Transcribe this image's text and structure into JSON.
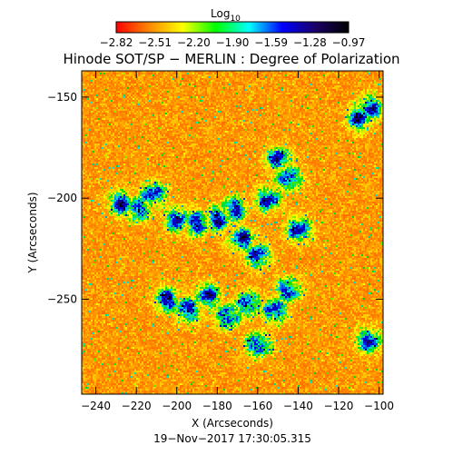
{
  "chart_data": {
    "type": "heatmap",
    "title": "Hinode SOT/SP − MERLIN : Degree of Polarization",
    "xlabel": "X (Arcseconds)",
    "ylabel": "Y (Arcseconds)",
    "timestamp": "19−Nov−2017 17:30:05.315",
    "xlim": [
      -247,
      -98
    ],
    "ylim": [
      -297,
      -137
    ],
    "x_ticks": [
      {
        "value": -240,
        "label": "−240"
      },
      {
        "value": -220,
        "label": "−220"
      },
      {
        "value": -200,
        "label": "−200"
      },
      {
        "value": -180,
        "label": "−180"
      },
      {
        "value": -160,
        "label": "−160"
      },
      {
        "value": -140,
        "label": "−140"
      },
      {
        "value": -120,
        "label": "−120"
      },
      {
        "value": -100,
        "label": "−100"
      }
    ],
    "y_ticks": [
      {
        "value": -150,
        "label": "−150"
      },
      {
        "value": -200,
        "label": "−200"
      },
      {
        "value": -250,
        "label": "−250"
      }
    ],
    "colorbar": {
      "label_base": "Log",
      "label_sub": "10",
      "range": [
        -2.82,
        -0.97
      ],
      "tick_labels": [
        "−2.82",
        "−2.51",
        "−2.20",
        "−1.90",
        "−1.59",
        "−1.28",
        "−0.97"
      ],
      "colors": [
        "#ff0000",
        "#ff8800",
        "#ffff00",
        "#00ff00",
        "#00ffff",
        "#0000ff",
        "#1a0066",
        "#000000"
      ]
    },
    "regions": {
      "high_polarization_network": [
        {
          "x": -228,
          "y": -202
        },
        {
          "x": -220,
          "y": -205
        },
        {
          "x": -212,
          "y": -198
        },
        {
          "x": -200,
          "y": -210
        },
        {
          "x": -190,
          "y": -212
        },
        {
          "x": -180,
          "y": -210
        },
        {
          "x": -172,
          "y": -205
        },
        {
          "x": -168,
          "y": -220
        },
        {
          "x": -160,
          "y": -228
        },
        {
          "x": -155,
          "y": -200
        },
        {
          "x": -150,
          "y": -180
        },
        {
          "x": -145,
          "y": -190
        },
        {
          "x": -140,
          "y": -215
        },
        {
          "x": -205,
          "y": -250
        },
        {
          "x": -195,
          "y": -255
        },
        {
          "x": -185,
          "y": -248
        },
        {
          "x": -175,
          "y": -258
        },
        {
          "x": -165,
          "y": -252
        },
        {
          "x": -152,
          "y": -255
        },
        {
          "x": -145,
          "y": -245
        },
        {
          "x": -160,
          "y": -272
        },
        {
          "x": -110,
          "y": -160
        },
        {
          "x": -105,
          "y": -155
        },
        {
          "x": -105,
          "y": -270
        }
      ]
    }
  }
}
